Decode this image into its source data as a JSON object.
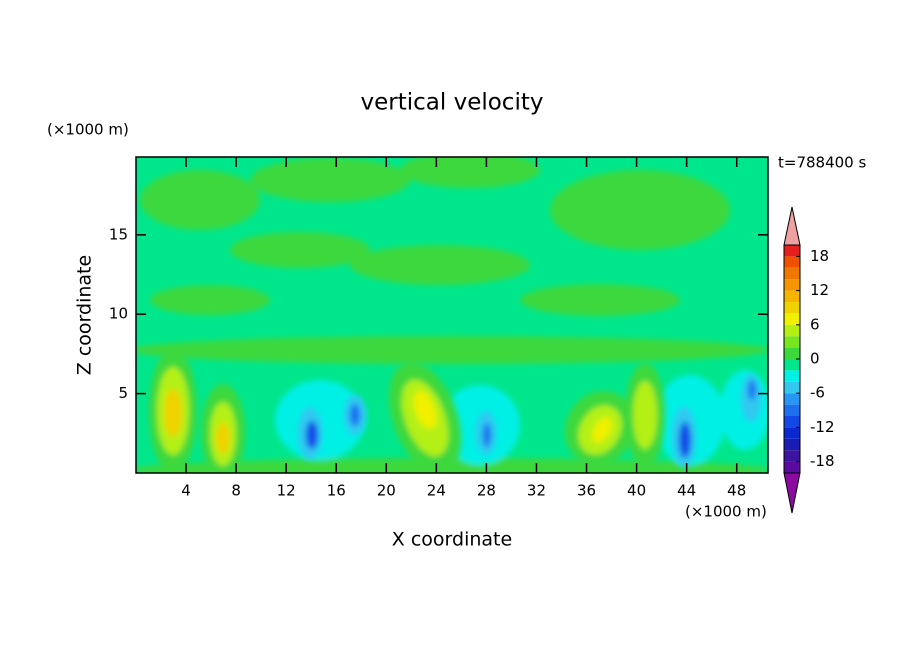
{
  "chart_data": {
    "type": "contour",
    "title": "vertical velocity",
    "xlabel": "X coordinate",
    "ylabel": "Z coordinate",
    "x_unit": "(×1000 m)",
    "y_unit": "(×1000 m)",
    "annotation": "t=788400 s",
    "xlim": [
      0,
      50.5
    ],
    "ylim": [
      0,
      19.9
    ],
    "xticks": [
      4,
      8,
      12,
      16,
      20,
      24,
      28,
      32,
      36,
      40,
      44,
      48
    ],
    "yticks": [
      5,
      10,
      15
    ],
    "colorbar": {
      "levels": [
        -20,
        -18,
        -16,
        -14,
        -12,
        -10,
        -8,
        -6,
        -4,
        -2,
        0,
        2,
        4,
        6,
        8,
        10,
        12,
        14,
        16,
        18,
        20
      ],
      "colors": [
        "#5a0aa0",
        "#3c14a0",
        "#1a1ab4",
        "#0a28d2",
        "#1448e6",
        "#1e6ef0",
        "#2896f5",
        "#32c8f0",
        "#00f0e6",
        "#00e68c",
        "#3cd83c",
        "#78e61e",
        "#b4f014",
        "#f0f000",
        "#f0d200",
        "#f5b400",
        "#f59600",
        "#f07800",
        "#f05000",
        "#e61e1e"
      ],
      "ticks": [
        -18,
        -12,
        -6,
        0,
        6,
        12,
        18
      ],
      "under_color": "#8c0aa0",
      "over_color": "#f0a0a0"
    }
  }
}
